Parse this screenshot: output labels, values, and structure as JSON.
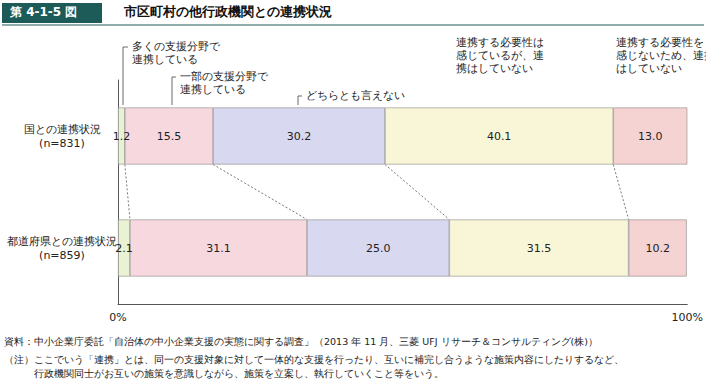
{
  "chart_data": {
    "type": "bar",
    "figure_label": "第 4-1-5 図",
    "title": "市区町村の他行政機関との連携状況",
    "orientation": "horizontal",
    "stacked": true,
    "data_labels": true,
    "grid": false,
    "categories": [
      "国との連携状況\n(n=831)",
      "都道府県との連携状況\n(n=859)"
    ],
    "xlim": [
      0,
      100
    ],
    "xticks": [
      {
        "value": 0,
        "label": "0%"
      },
      {
        "value": 100,
        "label": "100%"
      }
    ],
    "series": [
      {
        "name": "多くの支援分野で\n連携している",
        "color": "#e9f2d3",
        "values": [
          1.2,
          2.1
        ],
        "value_labels": [
          "1.2",
          "2.1"
        ]
      },
      {
        "name": "一部の支援分野で\n連携している",
        "color": "#f7d8df",
        "values": [
          15.5,
          31.1
        ],
        "value_labels": [
          "15.5",
          "31.1"
        ]
      },
      {
        "name": "どちらとも言えない",
        "color": "#d8d8f0",
        "values": [
          30.2,
          25.0
        ],
        "value_labels": [
          "30.2",
          "25.0"
        ]
      },
      {
        "name": "連携する必要性は\n感じているが、連\n携はしていない",
        "color": "#f9f6d8",
        "values": [
          40.1,
          31.5
        ],
        "value_labels": [
          "40.1",
          "31.5"
        ]
      },
      {
        "name": "連携する必要性を\n感じないため、連携\nはしていない",
        "color": "#f6d3d3",
        "values": [
          13.0,
          10.2
        ],
        "value_labels": [
          "13.0",
          "10.2"
        ]
      }
    ],
    "source": "資料：中小企業庁委託「自治体の中小企業支援の実態に関する調査」（2013 年 11 月、三菱 UFJ リサーチ＆コンサルティング(株)）",
    "note": "（注）ここでいう「連携」とは、同一の支援対象に対して一体的な支援を行ったり、互いに補完し合うような施策内容にしたりするなど、\n　　　行政機関同士がお互いの施策を意識しながら、施策を立案し、執行していくこと等をいう。"
  }
}
